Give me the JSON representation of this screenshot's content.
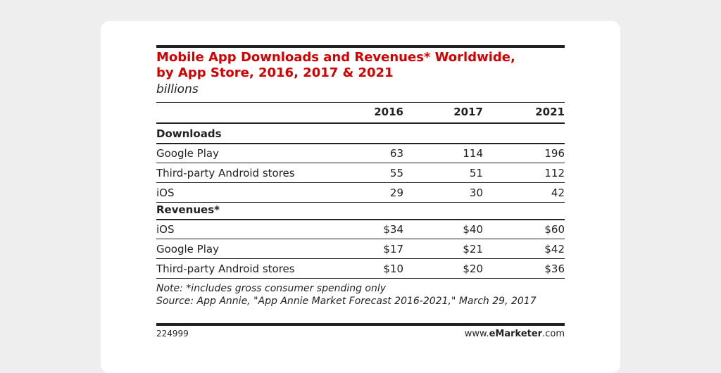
{
  "header": {
    "title_lines": [
      "Mobile App Downloads and Revenues* Worldwide,",
      "by App Store, 2016, 2017 & 2021"
    ],
    "subtitle": "billions"
  },
  "table": {
    "columns": [
      "2016",
      "2017",
      "2021"
    ],
    "sections": [
      {
        "heading": "Downloads",
        "rows": [
          {
            "label": "Google Play",
            "values": [
              "63",
              "114",
              "196"
            ]
          },
          {
            "label": "Third-party Android stores",
            "values": [
              "55",
              "51",
              "112"
            ]
          },
          {
            "label": "iOS",
            "values": [
              "29",
              "30",
              "42"
            ]
          }
        ]
      },
      {
        "heading": "Revenues*",
        "rows": [
          {
            "label": "iOS",
            "values": [
              "$34",
              "$40",
              "$60"
            ]
          },
          {
            "label": "Google Play",
            "values": [
              "$17",
              "$21",
              "$42"
            ]
          },
          {
            "label": "Third-party Android stores",
            "values": [
              "$10",
              "$20",
              "$36"
            ]
          }
        ]
      }
    ]
  },
  "footer": {
    "note": "Note: *includes gross consumer spending only",
    "source": "Source: App Annie, \"App Annie Market Forecast 2016-2021,\" March 29, 2017",
    "id": "224999",
    "brand": [
      "www.",
      "eMarketer",
      ".com"
    ]
  }
}
